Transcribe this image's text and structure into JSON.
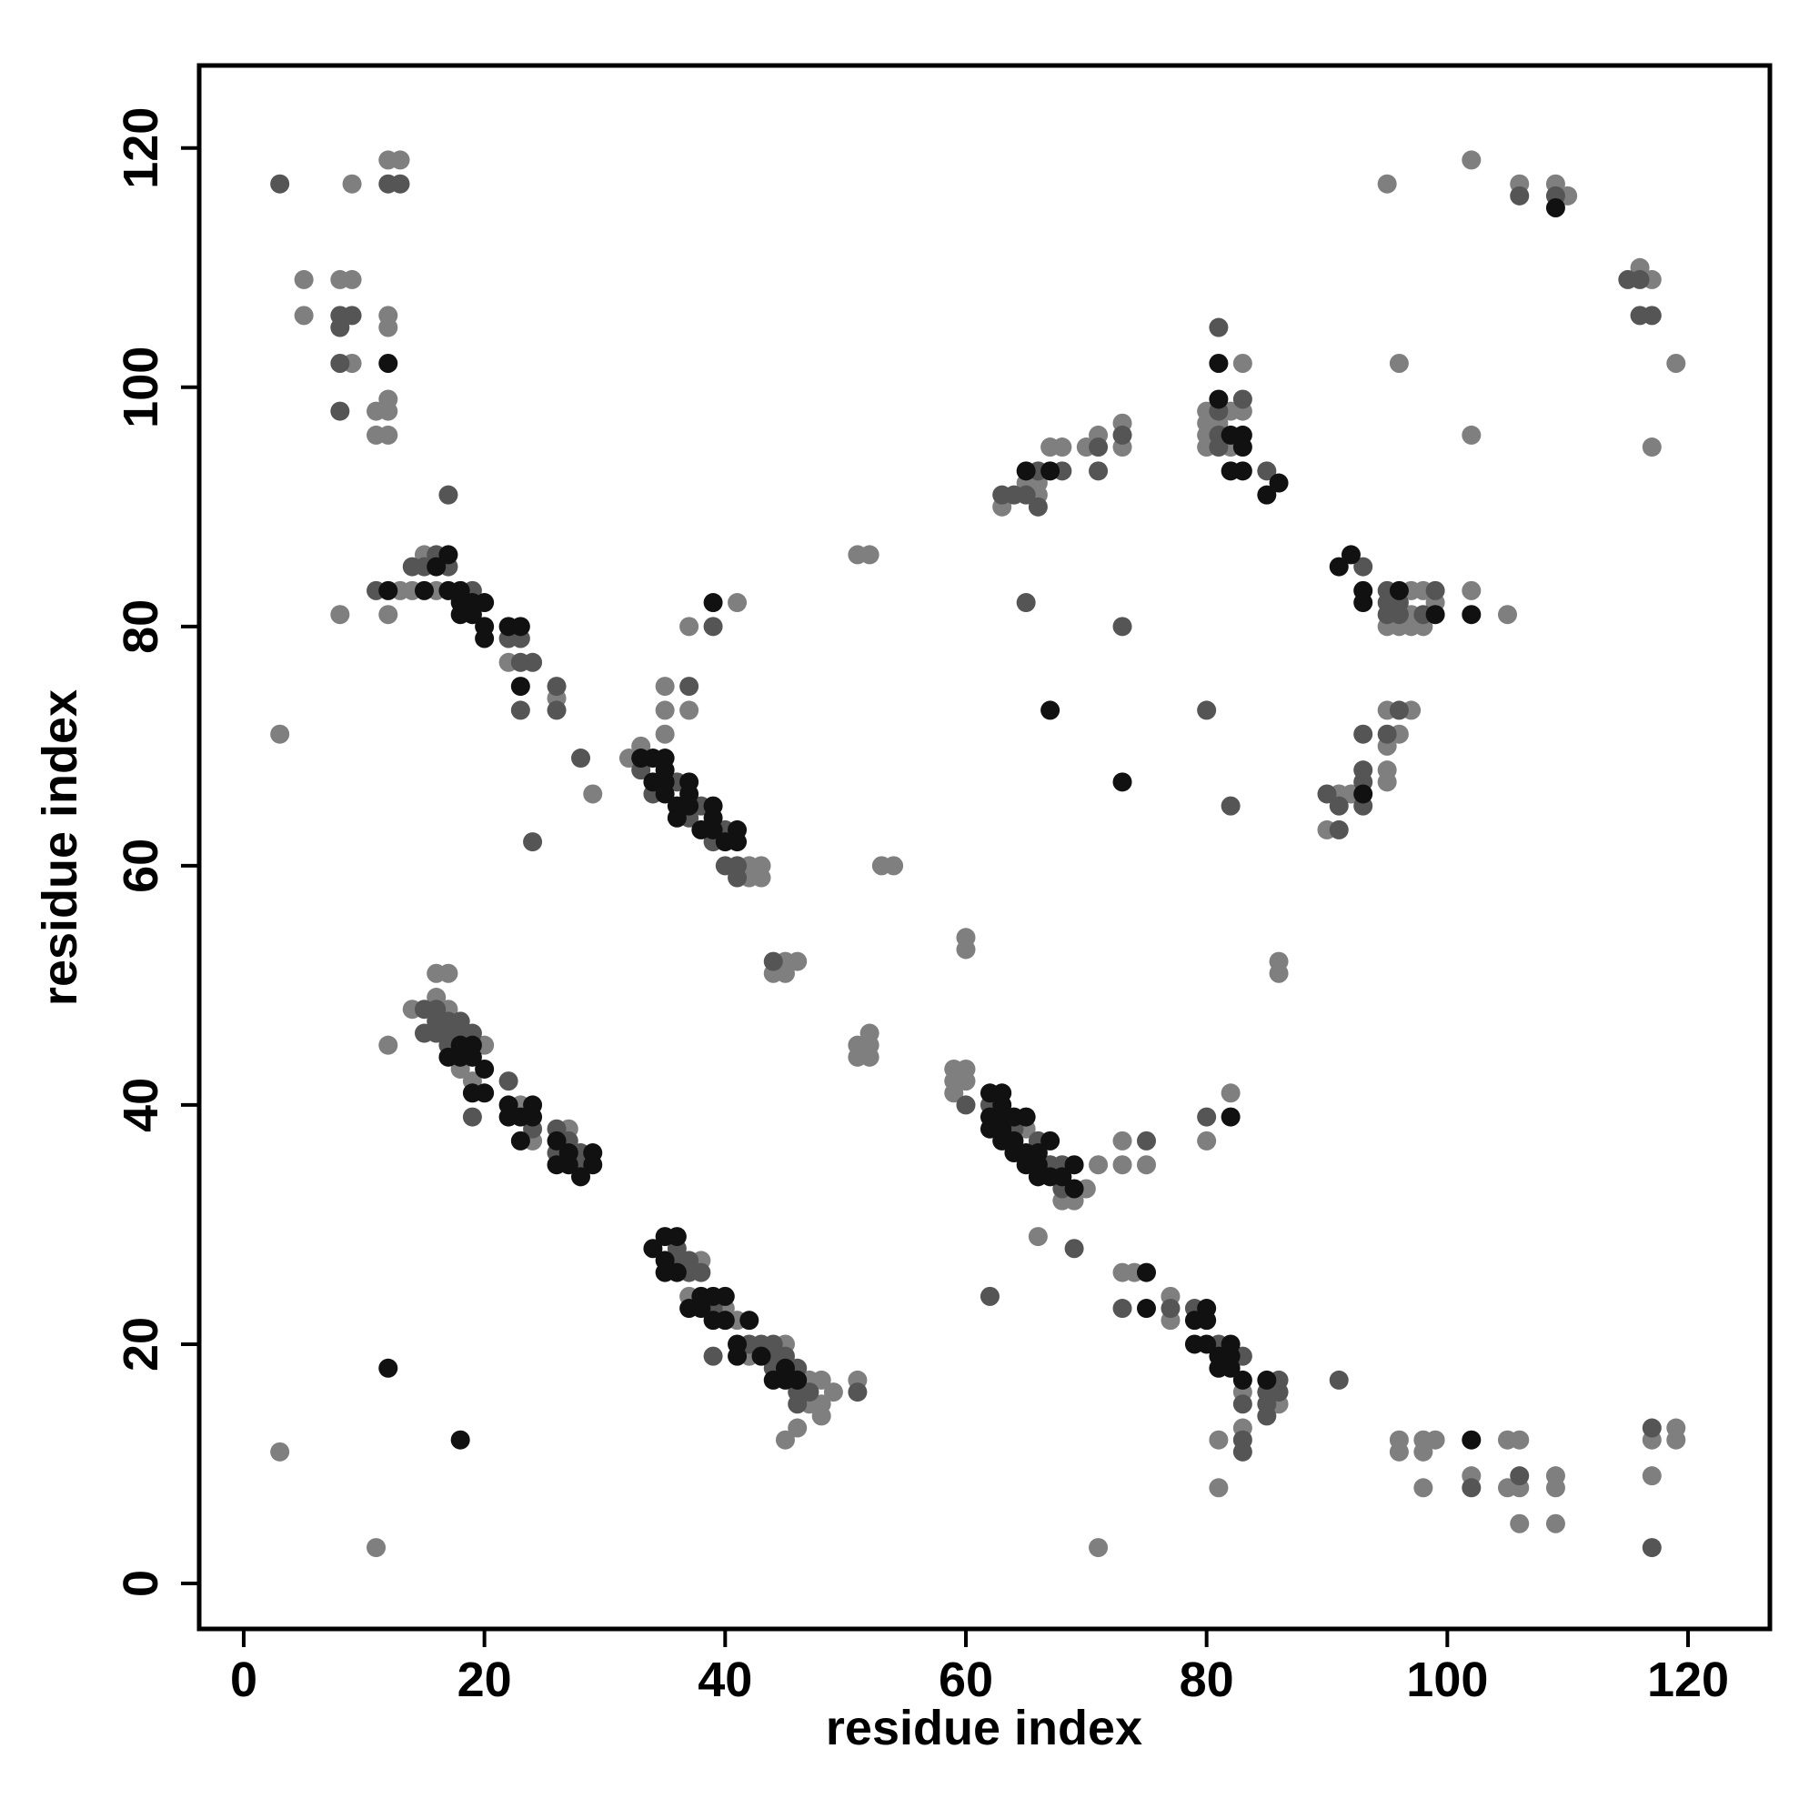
{
  "chart_data": {
    "type": "scatter",
    "x_label": "residue index",
    "y_label": "residue index",
    "xlim": [
      -3.7,
      126.8
    ],
    "ylim": [
      -3.8,
      126.9
    ],
    "xticks": [
      0,
      20,
      40,
      60,
      80,
      100,
      120
    ],
    "yticks": [
      0,
      20,
      40,
      60,
      80,
      100,
      120
    ],
    "series": [
      {
        "color": "#7f7f7f",
        "x": [
          3,
          3,
          5,
          5,
          8,
          8,
          9,
          9,
          9,
          11,
          11,
          11,
          12,
          12,
          12,
          12,
          12,
          12,
          12,
          12,
          13,
          13,
          14,
          14,
          15,
          16,
          16,
          16,
          17,
          17,
          18,
          19,
          20,
          22,
          23,
          24,
          26,
          27,
          29,
          32,
          33,
          35,
          35,
          35,
          37,
          37,
          37,
          38,
          40,
          41,
          41,
          42,
          42,
          42,
          43,
          43,
          44,
          45,
          45,
          45,
          45,
          46,
          46,
          47,
          47,
          48,
          48,
          48,
          49,
          51,
          51,
          51,
          51,
          52,
          52,
          52,
          52,
          53,
          54,
          59,
          59,
          59,
          60,
          60,
          60,
          60,
          63,
          65,
          65,
          66,
          66,
          66,
          67,
          68,
          68,
          69,
          70,
          70,
          71,
          71,
          71,
          73,
          73,
          73,
          73,
          73,
          74,
          75,
          77,
          77,
          80,
          80,
          80,
          80,
          80,
          81,
          81,
          81,
          82,
          82,
          82,
          83,
          83,
          83,
          83,
          86,
          86,
          86,
          90,
          91,
          92,
          95,
          95,
          95,
          95,
          95,
          95,
          96,
          96,
          96,
          96,
          96,
          97,
          97,
          97,
          97,
          98,
          98,
          98,
          98,
          98,
          99,
          99,
          102,
          102,
          102,
          102,
          105,
          105,
          105,
          106,
          106,
          106,
          106,
          109,
          109,
          109,
          109,
          110,
          116,
          117,
          117,
          117,
          117,
          119,
          119,
          119
        ],
        "values": [
          71,
          11,
          109,
          106,
          109,
          81,
          117,
          109,
          102,
          98,
          96,
          3,
          119,
          106,
          105,
          99,
          98,
          96,
          81,
          45,
          119,
          83,
          83,
          48,
          86,
          83,
          51,
          49,
          51,
          48,
          43,
          42,
          45,
          77,
          40,
          37,
          74,
          38,
          66,
          69,
          70,
          75,
          73,
          71,
          80,
          73,
          24,
          27,
          23,
          82,
          22,
          60,
          59,
          19,
          60,
          59,
          51,
          52,
          51,
          20,
          12,
          52,
          13,
          17,
          15,
          17,
          15,
          14,
          16,
          86,
          45,
          44,
          17,
          86,
          46,
          45,
          44,
          60,
          60,
          43,
          42,
          41,
          54,
          53,
          43,
          42,
          90,
          92,
          38,
          92,
          91,
          29,
          95,
          95,
          32,
          32,
          95,
          33,
          96,
          35,
          3,
          97,
          95,
          37,
          35,
          26,
          26,
          35,
          24,
          22,
          98,
          97,
          96,
          95,
          37,
          97,
          12,
          8,
          98,
          95,
          41,
          102,
          98,
          13,
          16,
          52,
          51,
          15,
          63,
          66,
          66,
          117,
          80,
          73,
          70,
          68,
          67,
          102,
          80,
          71,
          12,
          11,
          83,
          81,
          80,
          73,
          83,
          80,
          12,
          11,
          8,
          82,
          12,
          119,
          96,
          83,
          9,
          81,
          12,
          8,
          117,
          12,
          8,
          5,
          117,
          9,
          8,
          5,
          116,
          110,
          109,
          95,
          12,
          9,
          102,
          13,
          12
        ]
      },
      {
        "color": "#555555",
        "x": [
          3,
          8,
          8,
          8,
          8,
          9,
          11,
          12,
          13,
          14,
          15,
          15,
          15,
          16,
          16,
          16,
          16,
          17,
          17,
          17,
          17,
          17,
          18,
          18,
          19,
          19,
          19,
          22,
          22,
          23,
          23,
          23,
          24,
          24,
          24,
          26,
          26,
          26,
          26,
          27,
          28,
          28,
          28,
          33,
          34,
          36,
          36,
          36,
          37,
          37,
          37,
          37,
          38,
          38,
          39,
          39,
          39,
          39,
          40,
          40,
          41,
          41,
          42,
          43,
          44,
          44,
          44,
          44,
          45,
          46,
          46,
          46,
          47,
          51,
          60,
          62,
          62,
          63,
          64,
          64,
          65,
          65,
          66,
          66,
          66,
          67,
          68,
          68,
          68,
          69,
          71,
          71,
          73,
          73,
          73,
          75,
          77,
          79,
          80,
          80,
          81,
          81,
          81,
          81,
          81,
          82,
          83,
          83,
          83,
          83,
          83,
          85,
          85,
          85,
          85,
          86,
          86,
          90,
          91,
          91,
          91,
          93,
          93,
          93,
          93,
          93,
          95,
          95,
          95,
          95,
          96,
          96,
          96,
          98,
          99,
          102,
          106,
          106,
          109,
          115,
          116,
          116,
          117,
          117,
          117
        ],
        "values": [
          117,
          106,
          105,
          102,
          98,
          106,
          83,
          117,
          117,
          85,
          85,
          48,
          46,
          86,
          48,
          47,
          46,
          91,
          85,
          47,
          46,
          45,
          47,
          46,
          83,
          46,
          39,
          79,
          42,
          79,
          77,
          73,
          77,
          62,
          38,
          75,
          73,
          38,
          36,
          37,
          69,
          36,
          35,
          68,
          66,
          67,
          28,
          27,
          75,
          64,
          27,
          26,
          65,
          26,
          80,
          62,
          23,
          19,
          63,
          60,
          60,
          59,
          20,
          20,
          52,
          20,
          19,
          18,
          19,
          18,
          16,
          15,
          16,
          16,
          40,
          40,
          24,
          91,
          91,
          38,
          91,
          82,
          93,
          90,
          37,
          35,
          93,
          35,
          33,
          28,
          95,
          93,
          96,
          80,
          23,
          37,
          23,
          23,
          73,
          39,
          105,
          98,
          96,
          95,
          20,
          65,
          99,
          19,
          15,
          12,
          11,
          93,
          16,
          15,
          14,
          17,
          16,
          66,
          65,
          63,
          17,
          85,
          71,
          68,
          67,
          65,
          83,
          82,
          81,
          71,
          82,
          81,
          73,
          81,
          83,
          8,
          116,
          9,
          116,
          109,
          109,
          106,
          106,
          13,
          3
        ]
      },
      {
        "color": "#111111",
        "x": [
          12,
          12,
          12,
          15,
          16,
          17,
          17,
          17,
          18,
          18,
          18,
          18,
          18,
          18,
          19,
          19,
          19,
          19,
          19,
          20,
          20,
          20,
          20,
          20,
          22,
          22,
          22,
          23,
          23,
          23,
          23,
          24,
          24,
          26,
          26,
          27,
          27,
          28,
          29,
          29,
          33,
          34,
          34,
          34,
          35,
          35,
          35,
          35,
          35,
          35,
          35,
          36,
          36,
          36,
          36,
          37,
          37,
          37,
          37,
          38,
          38,
          38,
          39,
          39,
          39,
          39,
          39,
          39,
          40,
          40,
          40,
          41,
          41,
          41,
          41,
          42,
          43,
          44,
          45,
          45,
          46,
          62,
          62,
          62,
          63,
          63,
          63,
          63,
          63,
          64,
          64,
          64,
          65,
          65,
          65,
          65,
          66,
          66,
          66,
          67,
          67,
          67,
          67,
          68,
          69,
          69,
          73,
          75,
          75,
          79,
          79,
          80,
          80,
          80,
          81,
          81,
          81,
          81,
          82,
          82,
          82,
          82,
          82,
          82,
          83,
          83,
          83,
          83,
          85,
          85,
          86,
          91,
          92,
          93,
          93,
          93,
          96,
          99,
          102,
          102,
          109
        ],
        "values": [
          102,
          83,
          18,
          83,
          85,
          86,
          83,
          44,
          83,
          82,
          81,
          45,
          44,
          12,
          82,
          81,
          45,
          44,
          41,
          82,
          80,
          79,
          43,
          41,
          80,
          40,
          39,
          80,
          75,
          39,
          37,
          40,
          39,
          37,
          35,
          36,
          35,
          34,
          36,
          35,
          69,
          69,
          67,
          28,
          69,
          68,
          67,
          66,
          29,
          27,
          26,
          65,
          64,
          29,
          26,
          67,
          66,
          65,
          23,
          63,
          24,
          23,
          82,
          65,
          64,
          63,
          24,
          22,
          62,
          24,
          22,
          63,
          62,
          20,
          19,
          22,
          19,
          17,
          18,
          17,
          17,
          41,
          39,
          38,
          41,
          40,
          39,
          38,
          37,
          39,
          37,
          36,
          93,
          39,
          36,
          35,
          36,
          35,
          34,
          93,
          73,
          37,
          34,
          34,
          35,
          33,
          67,
          26,
          23,
          22,
          20,
          23,
          22,
          20,
          102,
          99,
          19,
          18,
          96,
          93,
          39,
          20,
          19,
          18,
          96,
          95,
          93,
          17,
          91,
          17,
          92,
          85,
          86,
          83,
          82,
          66,
          83,
          81,
          81,
          12,
          115
        ]
      }
    ]
  }
}
